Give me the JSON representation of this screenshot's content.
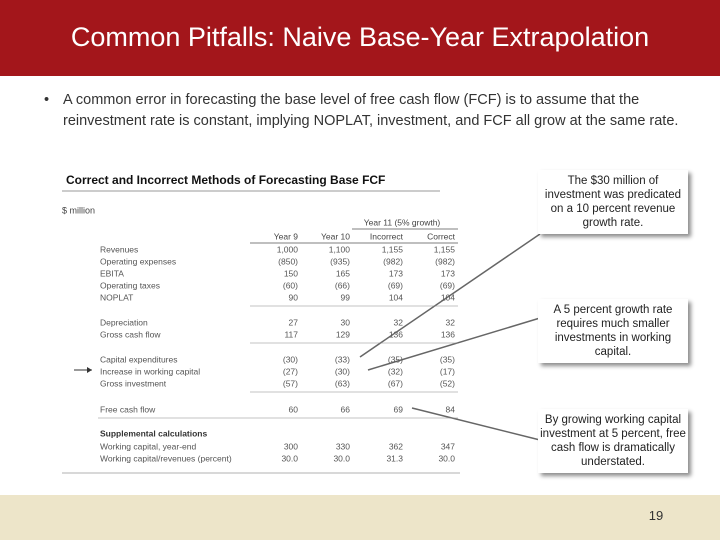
{
  "header": {
    "title": "Common Pitfalls: Naive Base-Year Extrapolation"
  },
  "bullet": "A common error in forecasting the base level of free cash flow (FCF) is to assume that the reinvestment rate is constant, implying NOPLAT, investment, and FCF all grow at the same rate.",
  "table": {
    "caption": "Correct and Incorrect Methods of Forecasting Base FCF",
    "unit": "$ million",
    "group_header": "Year 11 (5% growth)",
    "columns": [
      "Year 9",
      "Year 10",
      "Incorrect",
      "Correct"
    ],
    "rows": [
      [
        "Revenues",
        "1,000",
        "1,100",
        "1,155",
        "1,155"
      ],
      [
        "Operating expenses",
        "(850)",
        "(935)",
        "(982)",
        "(982)"
      ],
      [
        "EBITA",
        "150",
        "165",
        "173",
        "173"
      ],
      [
        "Operating taxes",
        "(60)",
        "(66)",
        "(69)",
        "(69)"
      ],
      [
        "NOPLAT",
        "90",
        "99",
        "104",
        "104"
      ],
      [
        "Depreciation",
        "27",
        "30",
        "32",
        "32"
      ],
      [
        "Gross cash flow",
        "117",
        "129",
        "136",
        "136"
      ],
      [
        "Capital expenditures",
        "(30)",
        "(33)",
        "(35)",
        "(35)"
      ],
      [
        "Increase in working capital",
        "(27)",
        "(30)",
        "(32)",
        "(17)"
      ],
      [
        "Gross investment",
        "(57)",
        "(63)",
        "(67)",
        "(52)"
      ],
      [
        "Free cash flow",
        "60",
        "66",
        "69",
        "84"
      ]
    ],
    "supplemental_heading": "Supplemental calculations",
    "supplemental_rows": [
      [
        "Working capital, year-end",
        "300",
        "330",
        "362",
        "347"
      ],
      [
        "Working capital/revenues (percent)",
        "30.0",
        "30.0",
        "31.3",
        "30.0"
      ]
    ]
  },
  "callouts": [
    "The $30 million of investment was predicated on a 10 percent revenue growth rate.",
    "A 5 percent growth rate requires much smaller investments in working capital.",
    "By growing working capital investment at 5 percent, free cash flow is dramatically understated."
  ],
  "footer": {
    "page_number": "19"
  }
}
